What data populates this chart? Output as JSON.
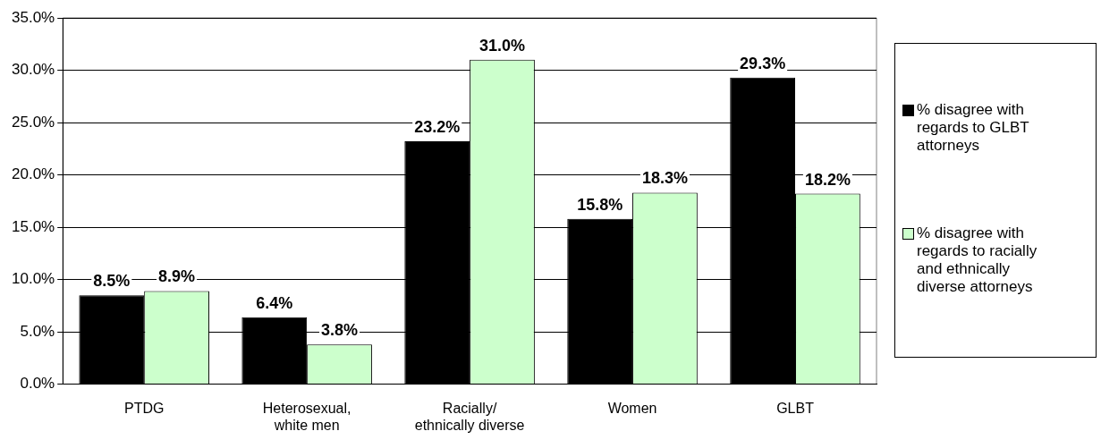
{
  "chart_data": {
    "type": "bar",
    "categories": [
      "PTDG",
      "Heterosexual, white men",
      "Racially/ ethnically diverse",
      "Women",
      "GLBT"
    ],
    "series": [
      {
        "name": "% disagree with regards to GLBT attorneys",
        "color": "#000000",
        "values": [
          8.5,
          6.4,
          23.2,
          15.8,
          29.3
        ],
        "value_labels": [
          "8.5%",
          "6.4%",
          "23.2%",
          "15.8%",
          "29.3%"
        ]
      },
      {
        "name": "% disagree with regards to racially and ethnically diverse attorneys",
        "color": "#ccffcc",
        "values": [
          8.9,
          3.8,
          31.0,
          18.3,
          18.2
        ],
        "value_labels": [
          "8.9%",
          "3.8%",
          "31.0%",
          "18.3%",
          "18.2%"
        ]
      }
    ],
    "ylim": [
      0,
      35
    ],
    "yticks": [
      {
        "value": 0,
        "label": "0.0%"
      },
      {
        "value": 5,
        "label": "5.0%"
      },
      {
        "value": 10,
        "label": "10.0%"
      },
      {
        "value": 15,
        "label": "15.0%"
      },
      {
        "value": 20,
        "label": "20.0%"
      },
      {
        "value": 25,
        "label": "25.0%"
      },
      {
        "value": 30,
        "label": "30.0%"
      },
      {
        "value": 35,
        "label": "35.0%"
      }
    ],
    "grid": "y",
    "legend": "right"
  }
}
